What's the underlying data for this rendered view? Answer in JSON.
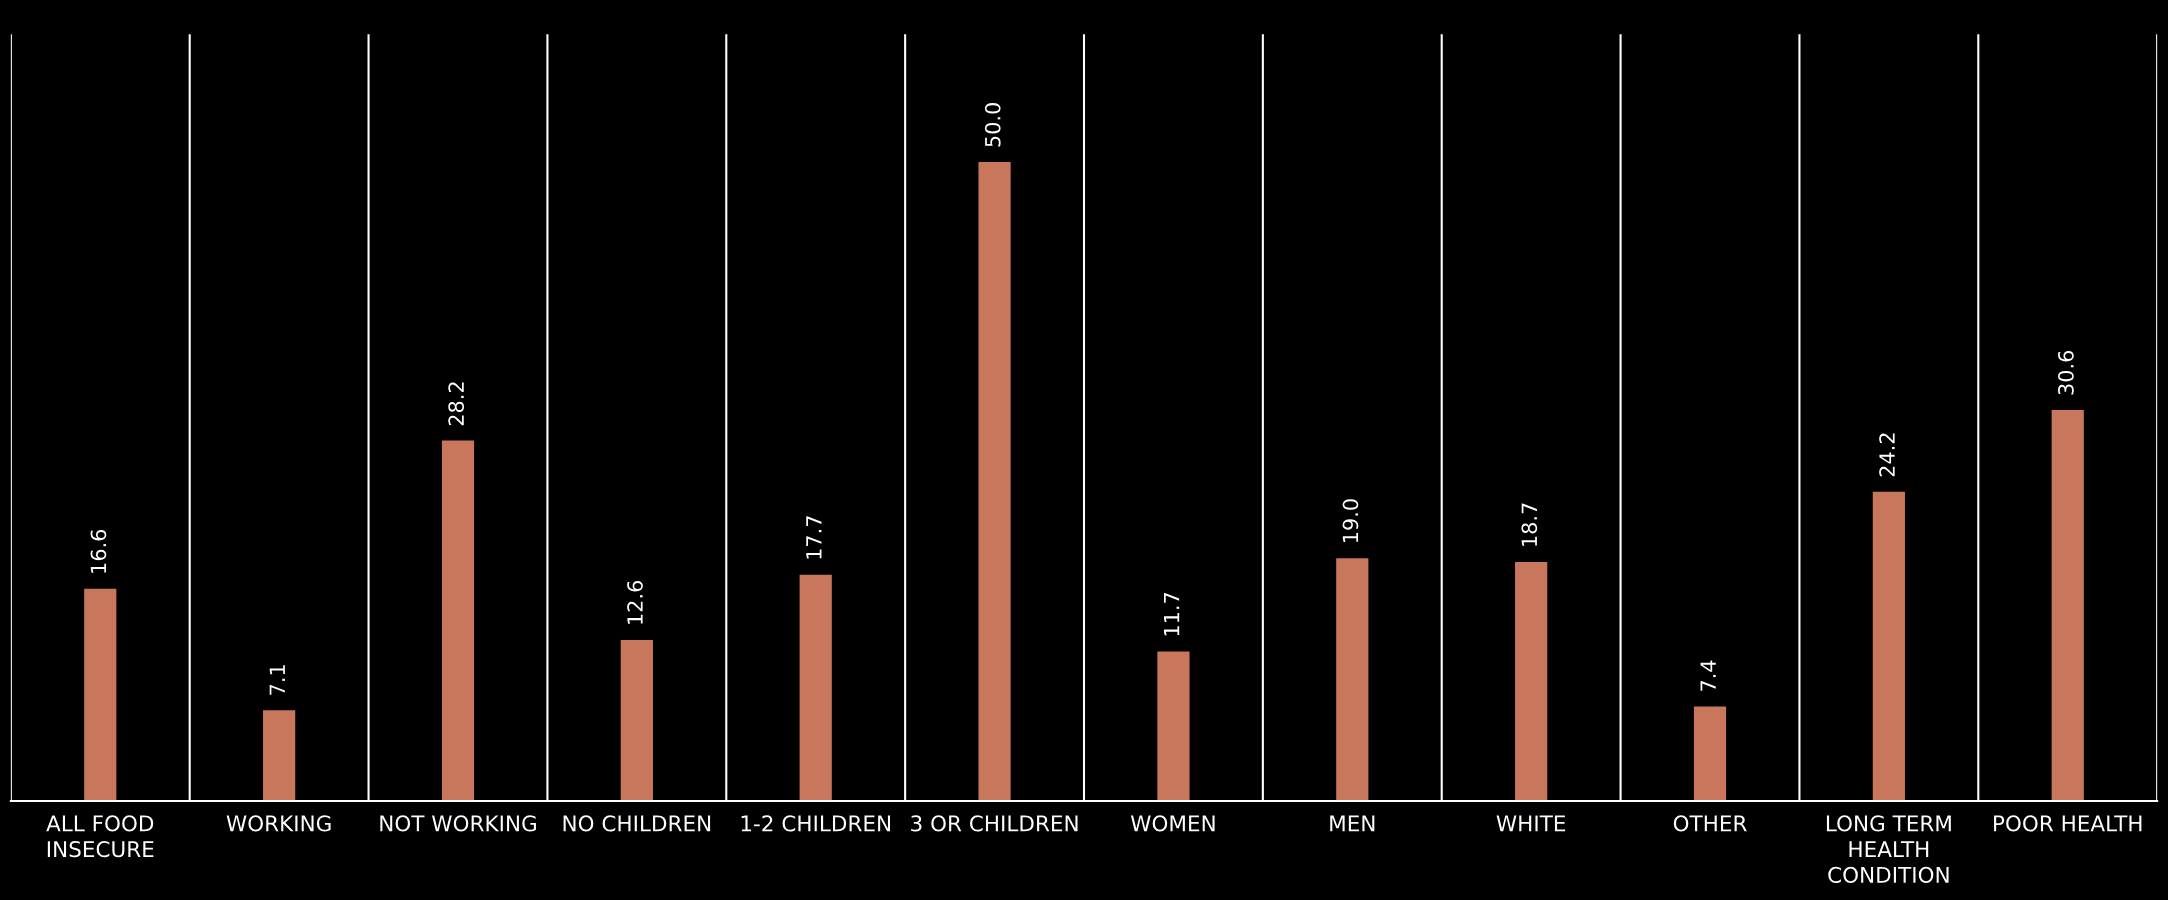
{
  "chart_data": {
    "type": "bar",
    "categories": [
      "ALL FOOD\nINSECURE",
      "WORKING",
      "NOT WORKING",
      "NO CHILDREN",
      "1-2 CHILDREN",
      "3 OR CHILDREN",
      "WOMEN",
      "MEN",
      "WHITE",
      "OTHER",
      "LONG TERM\nHEALTH\nCONDITION",
      "POOR HEALTH"
    ],
    "values": [
      16.6,
      7.1,
      28.2,
      12.6,
      17.7,
      50.0,
      11.7,
      19.0,
      18.7,
      7.4,
      24.2,
      30.6
    ],
    "color": "#c9775c",
    "value_labels": [
      "16.6",
      "7.1",
      "28.2",
      "12.6",
      "17.7",
      "50.0",
      "11.7",
      "19.0",
      "18.7",
      "7.4",
      "24.2",
      "30.6"
    ],
    "grid": "x"
  }
}
